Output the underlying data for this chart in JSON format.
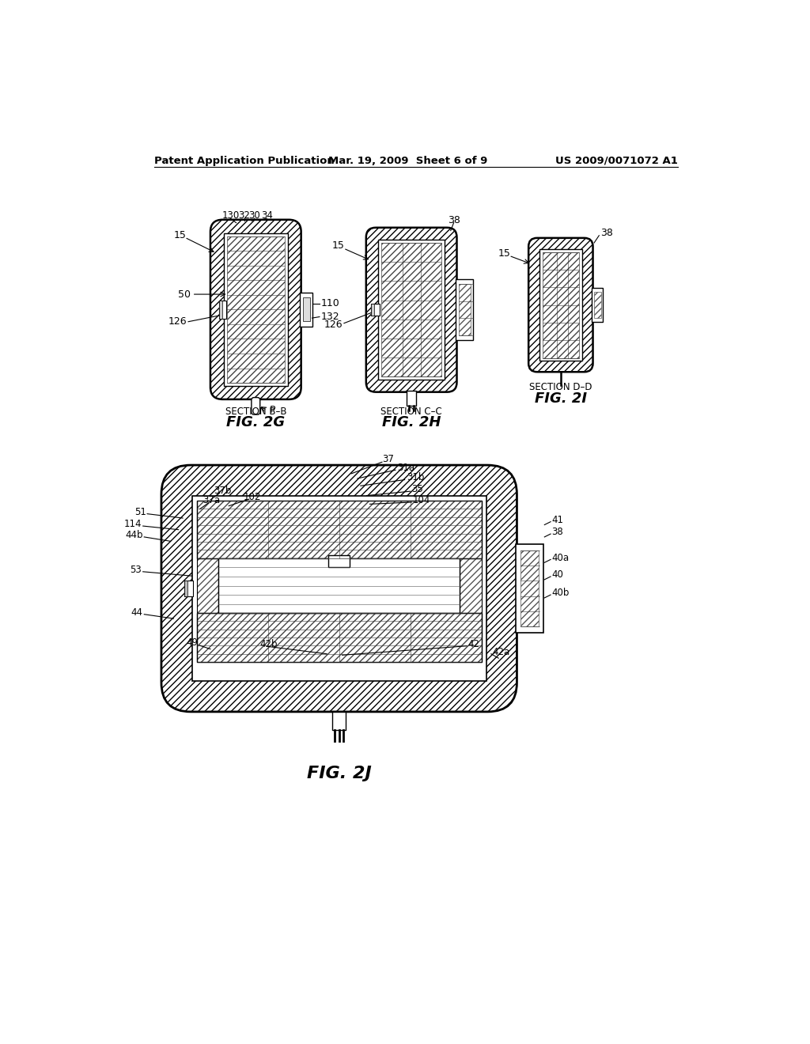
{
  "bg_color": "#ffffff",
  "header_left": "Patent Application Publication",
  "header_mid": "Mar. 19, 2009  Sheet 6 of 9",
  "header_right": "US 2009/0071072 A1",
  "fig2g_label": "FIG. 2G",
  "fig2g_caption": "SECTION B–B",
  "fig2h_label": "FIG. 2H",
  "fig2h_caption": "SECTION C–C",
  "fig2i_label": "FIG. 2I",
  "fig2i_caption": "SECTION D–D",
  "fig2j_label": "FIG. 2J",
  "line_color": "#000000"
}
